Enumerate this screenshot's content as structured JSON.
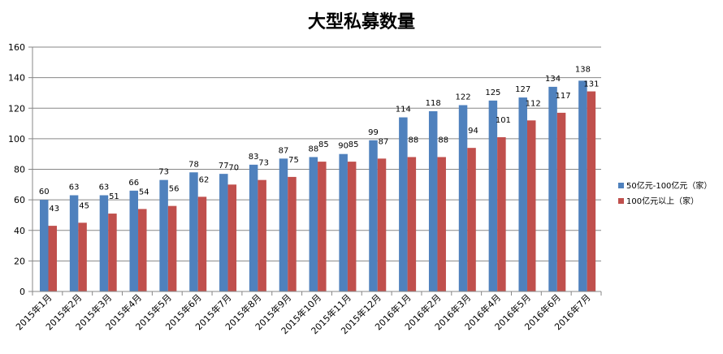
{
  "chart_data": {
    "type": "bar",
    "title": "大型私募数量",
    "xlabel": "",
    "ylabel": "",
    "ylim": [
      0,
      160
    ],
    "yticks": [
      0,
      20,
      40,
      60,
      80,
      100,
      120,
      140,
      160
    ],
    "grid": true,
    "legend_position": "right",
    "categories": [
      "2015年1月",
      "2015年2月",
      "2015年3月",
      "2015年4月",
      "2015年5月",
      "2015年6月",
      "2015年7月",
      "2015年8月",
      "2015年9月",
      "2015年10月",
      "2015年11月",
      "2015年12月",
      "2016年1月",
      "2016年2月",
      "2016年3月",
      "2016年4月",
      "2016年5月",
      "2016年6月",
      "2016年7月"
    ],
    "series": [
      {
        "name": "50亿元-100亿元（家）",
        "color": "#4f81bd",
        "values": [
          60,
          63,
          63,
          66,
          73,
          78,
          77,
          83,
          87,
          88,
          90,
          99,
          114,
          118,
          122,
          125,
          127,
          134,
          138
        ]
      },
      {
        "name": "100亿元以上（家）",
        "color": "#c0504d",
        "values": [
          43,
          45,
          51,
          54,
          56,
          62,
          70,
          73,
          75,
          85,
          85,
          87,
          88,
          88,
          94,
          101,
          112,
          117,
          131
        ]
      }
    ]
  }
}
